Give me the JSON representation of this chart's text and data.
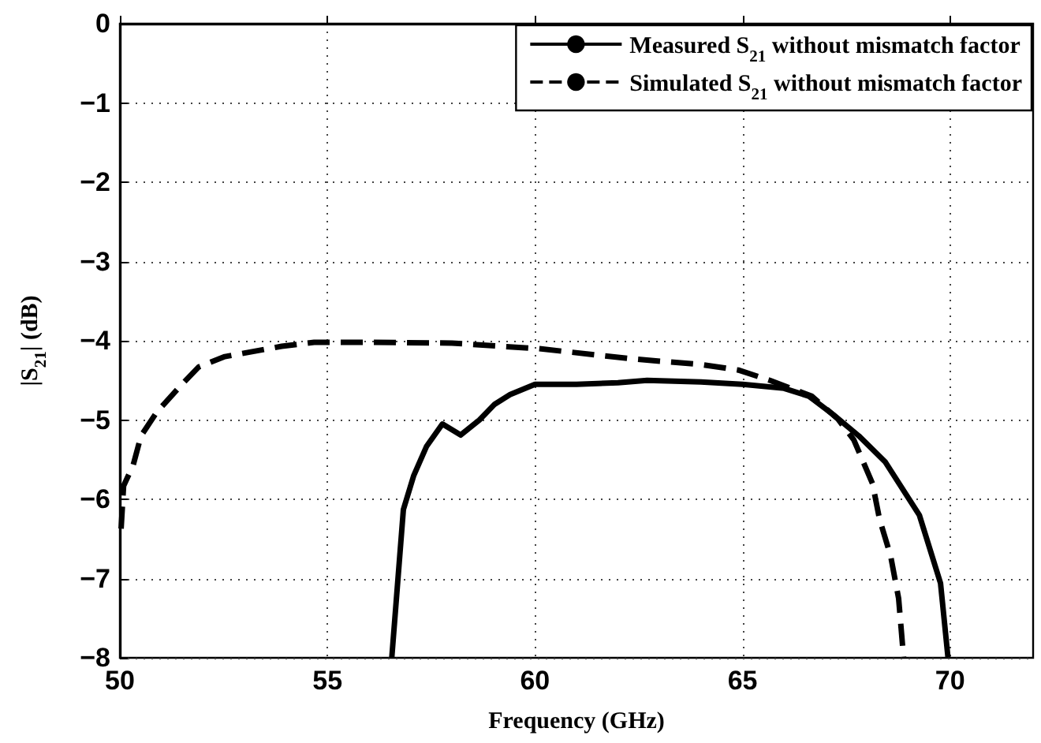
{
  "chart_data": {
    "type": "line",
    "xlabel": "Frequency (GHz)",
    "ylabel": "|S$_{21}$| (dB)",
    "xlim": [
      50,
      72
    ],
    "xticks": [
      50,
      55,
      60,
      65,
      70
    ],
    "ylim": [
      -8,
      0
    ],
    "yticks": [
      -8,
      -7,
      -6,
      -5,
      -4,
      -3,
      -2,
      -1,
      0
    ],
    "grid": true,
    "legend": "top right",
    "marker": "none",
    "series": [
      {
        "name": "Measured S$_{21}$ without mismatch factor",
        "color": "#000000",
        "line_style": "solid",
        "x": [
          56.55,
          56.83,
          57.08,
          57.39,
          57.77,
          58.21,
          58.66,
          59.03,
          59.4,
          60,
          61,
          62,
          62.7,
          64,
          65,
          66,
          66.6,
          67.18,
          67.8,
          68.44,
          69.26,
          69.77,
          69.95
        ],
        "values": [
          -8,
          -6.13,
          -5.7,
          -5.33,
          -5.05,
          -5.19,
          -5.0,
          -4.8,
          -4.68,
          -4.55,
          -4.55,
          -4.53,
          -4.5,
          -4.52,
          -4.55,
          -4.6,
          -4.7,
          -4.93,
          -5.2,
          -5.53,
          -6.2,
          -7.06,
          -8
        ]
      },
      {
        "name": "Simulated S$_{21}$ without mismatch factor",
        "color": "#000000",
        "line_style": "dashed",
        "x": [
          50.03,
          50.09,
          50.32,
          50.51,
          50.89,
          51.46,
          51.9,
          52.53,
          53.9,
          54.68,
          56,
          58,
          60.1,
          62.37,
          64.0,
          64.9,
          65.66,
          66.67,
          67.3,
          67.68,
          68.13,
          68.3,
          68.57,
          68.76,
          68.88
        ],
        "values": [
          -6.37,
          -5.83,
          -5.57,
          -5.2,
          -4.9,
          -4.57,
          -4.33,
          -4.2,
          -4.07,
          -4.02,
          -4.02,
          -4.03,
          -4.1,
          -4.23,
          -4.3,
          -4.37,
          -4.5,
          -4.7,
          -4.99,
          -5.25,
          -5.8,
          -6.25,
          -6.72,
          -7.25,
          -8
        ]
      }
    ]
  }
}
